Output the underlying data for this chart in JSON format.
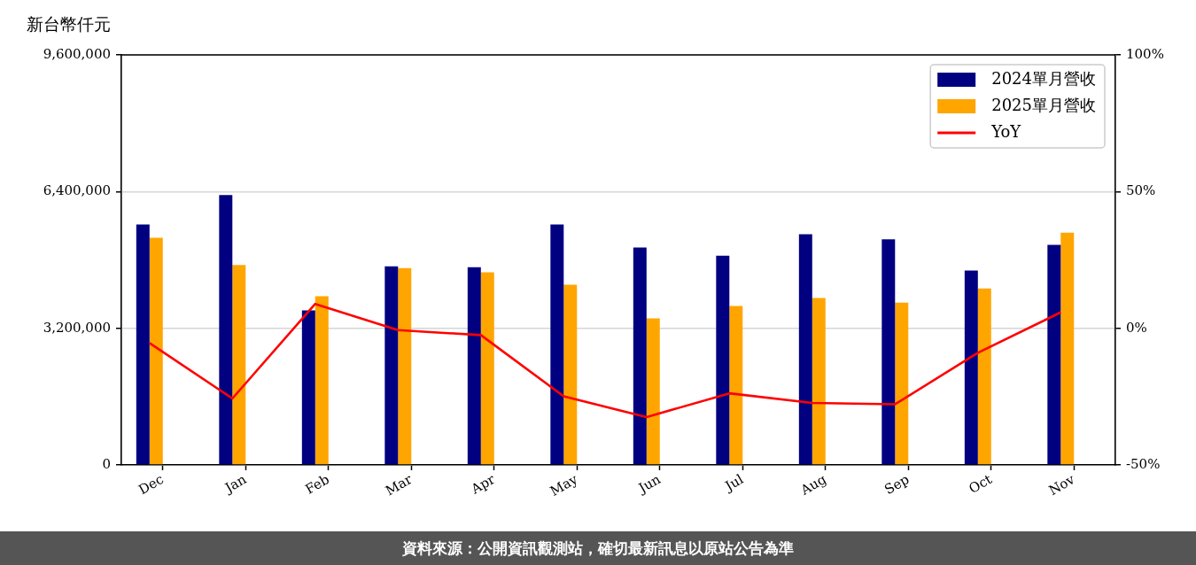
{
  "chart_data": {
    "type": "bar",
    "ylabel": "新台幣仟元",
    "categories": [
      "Dec",
      "Jan",
      "Feb",
      "Mar",
      "Apr",
      "May",
      "Jun",
      "Jul",
      "Aug",
      "Sep",
      "Oct",
      "Nov"
    ],
    "series": [
      {
        "name": "2024單月營收",
        "color": "#000080",
        "values": [
          5630000,
          6320000,
          3620000,
          4650000,
          4630000,
          5630000,
          5090000,
          4900000,
          5400000,
          5280000,
          4550000,
          5150000
        ]
      },
      {
        "name": "2025單月營收",
        "color": "#ffa500",
        "values": [
          5320000,
          4680000,
          3950000,
          4610000,
          4510000,
          4220000,
          3430000,
          3720000,
          3910000,
          3800000,
          4130000,
          5440000
        ]
      },
      {
        "name": "YoY",
        "type": "line",
        "axis": "y2",
        "color": "#ff0000",
        "values": [
          -5.4,
          -25.7,
          8.9,
          -0.7,
          -2.5,
          -24.9,
          -32.5,
          -23.8,
          -27.3,
          -27.8,
          -9.0,
          5.8
        ]
      }
    ],
    "ylim": [
      0,
      9600000
    ],
    "yticks": [
      0,
      {
        "value": 3200000,
        "label": "3,200,000"
      },
      {
        "value": 6400000,
        "label": "6,400,000"
      },
      {
        "value": 9600000,
        "label": "9,600,000"
      }
    ],
    "y2lim": [
      -50,
      100
    ],
    "y2ticks": [
      {
        "value": -50,
        "label": "-50%"
      },
      {
        "value": 0,
        "label": "0%"
      },
      {
        "value": 50,
        "label": "50%"
      },
      {
        "value": 100,
        "label": "100%"
      }
    ],
    "grid": "y",
    "legend": "top right",
    "annotations": [
      "資料來源：公開資訊觀測站，確切最新訊息以原站公告為準"
    ]
  }
}
